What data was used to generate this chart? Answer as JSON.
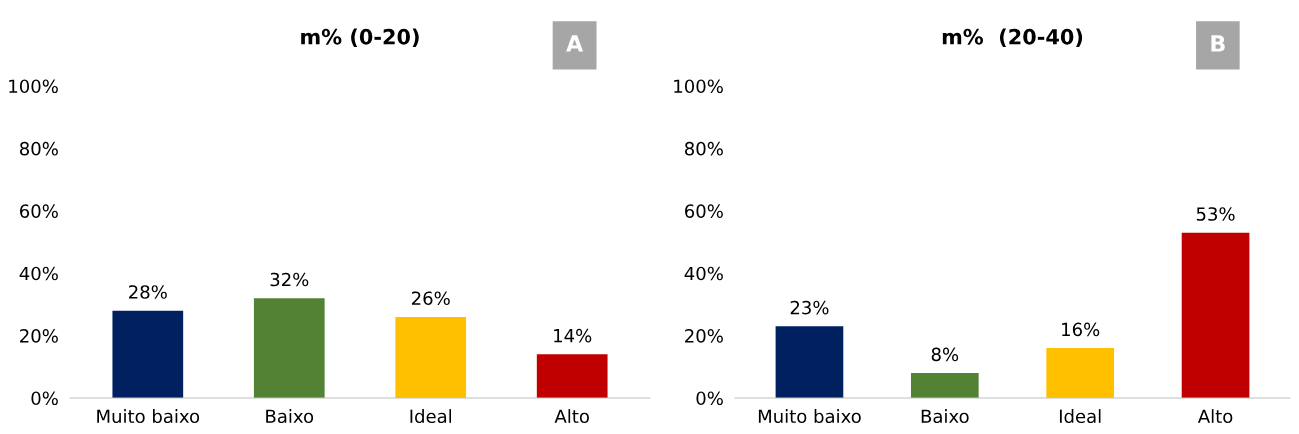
{
  "chart_data": [
    {
      "type": "bar",
      "title": "m% (0-20)",
      "categories": [
        "Muito baixo",
        "Baixo",
        "Ideal",
        "Alto"
      ],
      "values": [
        28,
        32,
        26,
        14
      ],
      "colors": [
        "#002060",
        "#548235",
        "#ffc000",
        "#c00000"
      ],
      "value_labels": [
        "28%",
        "32%",
        "26%",
        "14%"
      ],
      "ylim": [
        0,
        100
      ],
      "yticks": [
        {
          "value": 0,
          "label": "0%"
        },
        {
          "value": 20,
          "label": "20%"
        },
        {
          "value": 40,
          "label": "40%"
        },
        {
          "value": 60,
          "label": "60%"
        },
        {
          "value": 80,
          "label": "80%"
        },
        {
          "value": 100,
          "label": "100%"
        }
      ],
      "grid": false,
      "legend": false,
      "annotations": [
        "A"
      ]
    },
    {
      "type": "bar",
      "title": "m%  (20-40)",
      "categories": [
        "Muito baixo",
        "Baixo",
        "Ideal",
        "Alto"
      ],
      "values": [
        23,
        8,
        16,
        53
      ],
      "colors": [
        "#002060",
        "#548235",
        "#ffc000",
        "#c00000"
      ],
      "value_labels": [
        "23%",
        "8%",
        "16%",
        "53%"
      ],
      "ylim": [
        0,
        100
      ],
      "yticks": [
        {
          "value": 0,
          "label": "0%"
        },
        {
          "value": 20,
          "label": "20%"
        },
        {
          "value": 40,
          "label": "40%"
        },
        {
          "value": 60,
          "label": "60%"
        },
        {
          "value": 80,
          "label": "80%"
        },
        {
          "value": 100,
          "label": "100%"
        }
      ],
      "grid": false,
      "legend": false,
      "annotations": [
        "B"
      ]
    }
  ]
}
